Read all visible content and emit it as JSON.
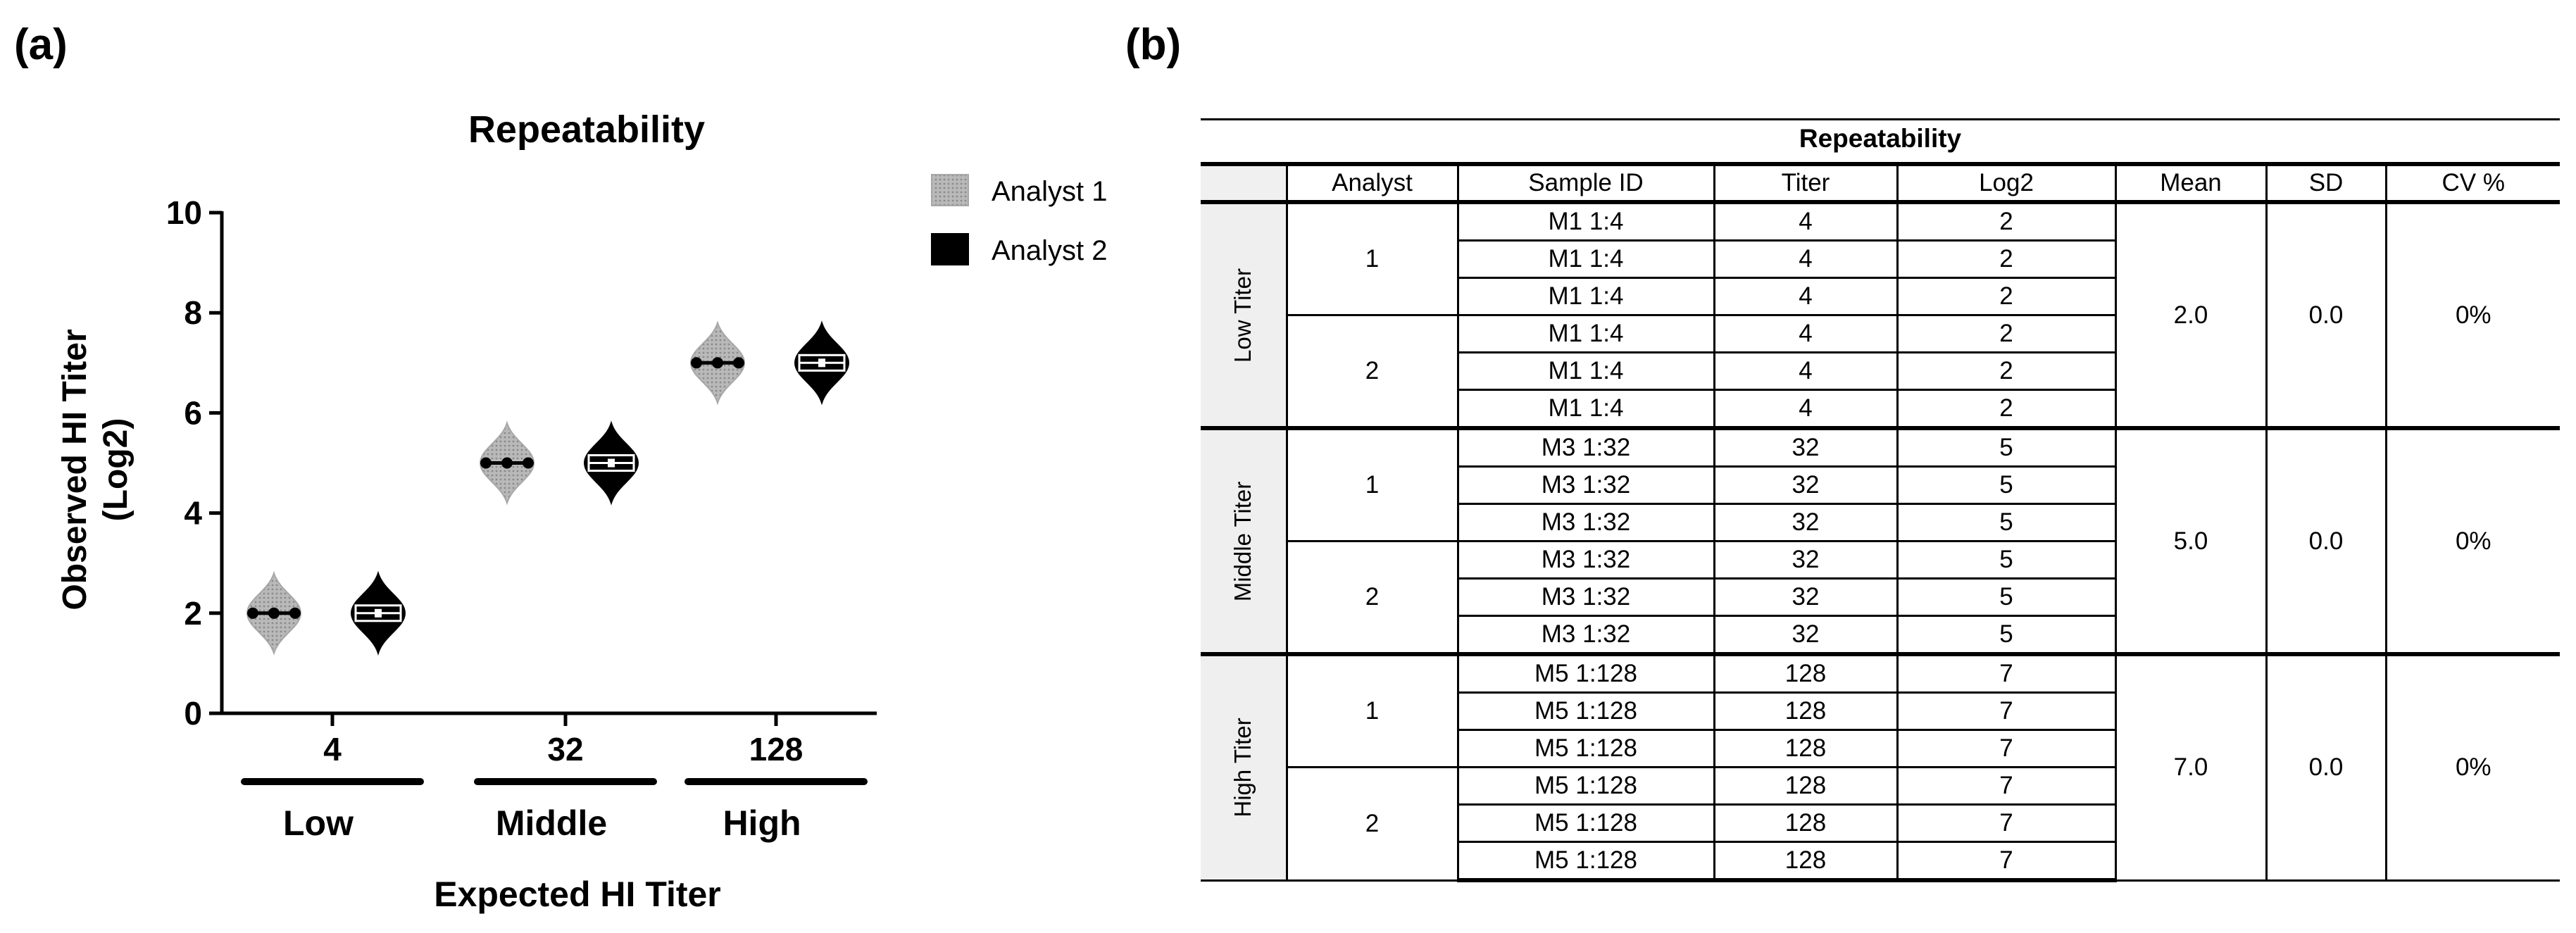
{
  "panel_a_label": "(a)",
  "panel_b_label": "(b)",
  "chart_data": {
    "type": "violin",
    "title": "Repeatability",
    "xlabel": "Expected HI Titer",
    "ylabel": "Observed HI Titer (Log2)",
    "ylim": [
      0,
      10
    ],
    "yticks": [
      0,
      2,
      4,
      6,
      8,
      10
    ],
    "categories": [
      "4",
      "32",
      "128"
    ],
    "category_groups": [
      "Low",
      "Middle",
      "High"
    ],
    "series": [
      {
        "name": "Analyst 1",
        "color": "#b4b4b4",
        "values": [
          2,
          5,
          7
        ],
        "spread": [
          0.8,
          0.8,
          0.8
        ]
      },
      {
        "name": "Analyst 2",
        "color": "#000000",
        "values": [
          2,
          5,
          7
        ],
        "spread": [
          0.8,
          0.8,
          0.8
        ]
      }
    ],
    "legend_position": "top-right",
    "grid": false
  },
  "table": {
    "title": "Repeatability",
    "headers": [
      "",
      "Analyst",
      "Sample ID",
      "Titer",
      "Log2",
      "Mean",
      "SD",
      "CV %"
    ],
    "groups": [
      {
        "label": "Low Titer",
        "mean": "2.0",
        "sd": "0.0",
        "cv": "0%",
        "analysts": [
          {
            "analyst": "1",
            "rows": [
              [
                "M1 1:4",
                "4",
                "2"
              ],
              [
                "M1 1:4",
                "4",
                "2"
              ],
              [
                "M1 1:4",
                "4",
                "2"
              ]
            ]
          },
          {
            "analyst": "2",
            "rows": [
              [
                "M1 1:4",
                "4",
                "2"
              ],
              [
                "M1 1:4",
                "4",
                "2"
              ],
              [
                "M1 1:4",
                "4",
                "2"
              ]
            ]
          }
        ]
      },
      {
        "label": "Middle Titer",
        "mean": "5.0",
        "sd": "0.0",
        "cv": "0%",
        "analysts": [
          {
            "analyst": "1",
            "rows": [
              [
                "M3 1:32",
                "32",
                "5"
              ],
              [
                "M3 1:32",
                "32",
                "5"
              ],
              [
                "M3 1:32",
                "32",
                "5"
              ]
            ]
          },
          {
            "analyst": "2",
            "rows": [
              [
                "M3 1:32",
                "32",
                "5"
              ],
              [
                "M3 1:32",
                "32",
                "5"
              ],
              [
                "M3 1:32",
                "32",
                "5"
              ]
            ]
          }
        ]
      },
      {
        "label": "High Titer",
        "mean": "7.0",
        "sd": "0.0",
        "cv": "0%",
        "analysts": [
          {
            "analyst": "1",
            "rows": [
              [
                "M5 1:128",
                "128",
                "7"
              ],
              [
                "M5 1:128",
                "128",
                "7"
              ],
              [
                "M5 1:128",
                "128",
                "7"
              ]
            ]
          },
          {
            "analyst": "2",
            "rows": [
              [
                "M5 1:128",
                "128",
                "7"
              ],
              [
                "M5 1:128",
                "128",
                "7"
              ],
              [
                "M5 1:128",
                "128",
                "7"
              ]
            ]
          }
        ]
      }
    ]
  }
}
